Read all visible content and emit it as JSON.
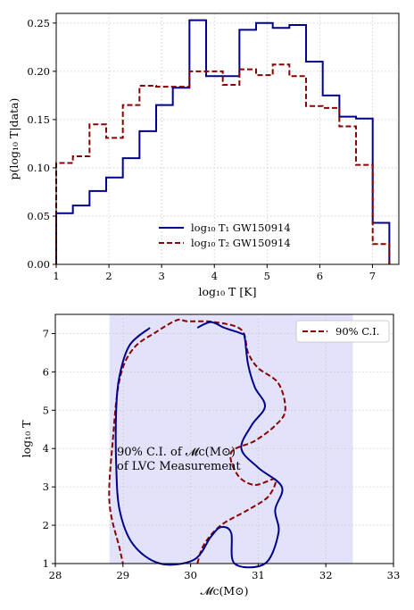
{
  "chart_data": [
    {
      "type": "histogram",
      "xlabel": "log₁₀ T [K]",
      "ylabel": "p(log₁₀ T|data)",
      "xlim": [
        1,
        7.5
      ],
      "ylim": [
        0,
        0.26
      ],
      "xticks": [
        "1",
        "2",
        "3",
        "4",
        "5",
        "6",
        "7"
      ],
      "yticks": [
        "0.00",
        "0.05",
        "0.10",
        "0.15",
        "0.20",
        "0.25"
      ],
      "grid": true,
      "legend_position": "lower-center",
      "bin_edges": [
        1.0,
        1.316,
        1.632,
        1.948,
        2.264,
        2.58,
        2.896,
        3.212,
        3.528,
        3.844,
        4.16,
        4.476,
        4.792,
        5.108,
        5.424,
        5.74,
        6.056,
        6.372,
        6.688,
        7.004,
        7.32
      ],
      "series": [
        {
          "name": "log₁₀ T₁ GW150914",
          "color": "#00008b",
          "linestyle": "solid",
          "values": [
            0.053,
            0.061,
            0.076,
            0.09,
            0.11,
            0.138,
            0.165,
            0.183,
            0.253,
            0.195,
            0.195,
            0.243,
            0.25,
            0.245,
            0.248,
            0.21,
            0.175,
            0.153,
            0.151,
            0.043
          ]
        },
        {
          "name": "log₁₀ T₂ GW150914",
          "color": "#8b0000",
          "linestyle": "dashed",
          "values": [
            0.105,
            0.112,
            0.145,
            0.131,
            0.165,
            0.185,
            0.184,
            0.184,
            0.2,
            0.2,
            0.186,
            0.202,
            0.196,
            0.207,
            0.195,
            0.164,
            0.162,
            0.143,
            0.103,
            0.021
          ]
        }
      ]
    },
    {
      "type": "contour",
      "xlabel": "𝓜c(M⊙)",
      "ylabel": "log₁₀ T",
      "xlim": [
        28,
        33
      ],
      "ylim": [
        1,
        7.5
      ],
      "xticks": [
        "28",
        "29",
        "30",
        "31",
        "32",
        "33"
      ],
      "yticks": [
        "1",
        "2",
        "3",
        "4",
        "5",
        "6",
        "7"
      ],
      "grid": true,
      "legend_position": "top-right",
      "shaded_band": {
        "x_range": [
          28.8,
          32.4
        ],
        "color": "#e2e2fa",
        "label_lines": [
          "90% C.I. of 𝓜c(M⊙)",
          "of LVC Measurement"
        ]
      },
      "series": [
        {
          "name": "90% C.I.",
          "color": "#8b0000",
          "linestyle": "dashed",
          "points": [
            [
              30.1,
              1.0
            ],
            [
              30.2,
              1.5
            ],
            [
              30.45,
              2.0
            ],
            [
              30.85,
              2.4
            ],
            [
              31.15,
              2.75
            ],
            [
              31.25,
              3.2
            ],
            [
              30.95,
              3.05
            ],
            [
              30.7,
              3.3
            ],
            [
              30.6,
              3.9
            ],
            [
              30.95,
              4.2
            ],
            [
              31.25,
              4.6
            ],
            [
              31.4,
              5.0
            ],
            [
              31.3,
              5.7
            ],
            [
              31.0,
              6.1
            ],
            [
              30.85,
              6.5
            ],
            [
              30.75,
              7.1
            ],
            [
              30.35,
              7.3
            ],
            [
              29.95,
              7.32
            ],
            [
              29.8,
              7.35
            ],
            [
              29.5,
              7.05
            ],
            [
              29.15,
              6.6
            ],
            [
              28.95,
              5.8
            ],
            [
              28.85,
              4.2
            ],
            [
              28.8,
              2.6
            ],
            [
              28.95,
              1.4
            ],
            [
              29.0,
              1.0
            ]
          ]
        },
        {
          "name": "",
          "color": "#00008b",
          "linestyle": "solid",
          "points": [
            [
              29.4,
              7.15
            ],
            [
              29.1,
              6.7
            ],
            [
              28.95,
              5.9
            ],
            [
              28.9,
              5.0
            ],
            [
              28.9,
              3.6
            ],
            [
              28.95,
              2.4
            ],
            [
              29.15,
              1.5
            ],
            [
              29.55,
              1.0
            ],
            [
              30.05,
              1.1
            ],
            [
              30.3,
              1.7
            ],
            [
              30.45,
              1.95
            ],
            [
              30.6,
              1.8
            ],
            [
              30.65,
              1.0
            ],
            [
              31.1,
              1.0
            ],
            [
              31.3,
              1.8
            ],
            [
              31.25,
              2.4
            ],
            [
              31.35,
              3.0
            ],
            [
              31.0,
              3.5
            ],
            [
              30.75,
              4.0
            ],
            [
              30.9,
              4.6
            ],
            [
              31.1,
              5.1
            ],
            [
              30.95,
              5.6
            ],
            [
              30.85,
              6.2
            ],
            [
              30.8,
              6.9
            ],
            [
              30.75,
              7.0
            ],
            [
              30.5,
              7.15
            ],
            [
              30.3,
              7.3
            ],
            [
              30.1,
              7.15
            ]
          ]
        }
      ]
    }
  ]
}
